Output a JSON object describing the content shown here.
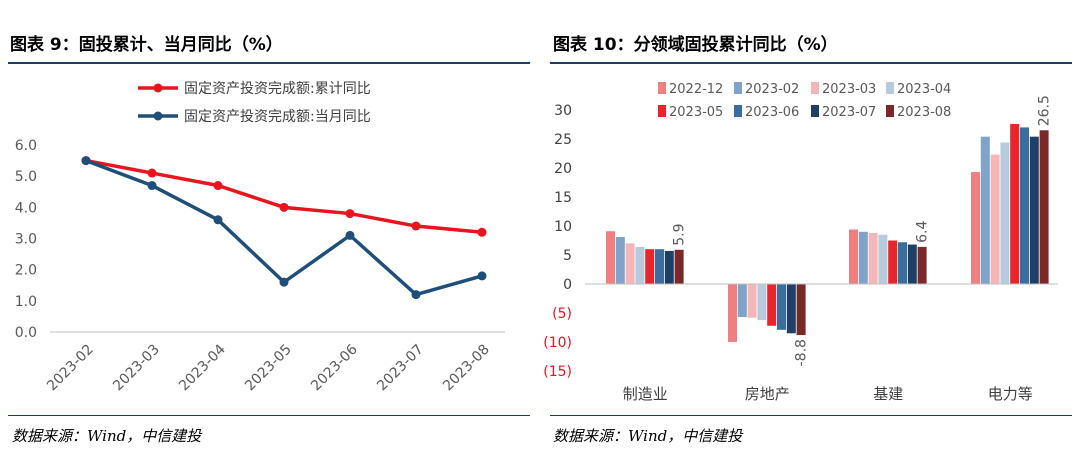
{
  "left_panel": {
    "title": "图表 9：固投累计、当月同比（%）",
    "source": "数据来源：Wind，中信建投"
  },
  "right_panel": {
    "title": "图表 10：分领域固投累计同比（%）",
    "source": "数据来源：Wind，中信建投"
  },
  "chart_data": [
    {
      "type": "line",
      "categories": [
        "2023-02",
        "2023-03",
        "2023-04",
        "2023-05",
        "2023-06",
        "2023-07",
        "2023-08"
      ],
      "series": [
        {
          "name": "固定资产投资完成额:累计同比",
          "color": "#e8141e",
          "values": [
            5.5,
            5.1,
            4.7,
            4.0,
            3.8,
            3.4,
            3.2
          ]
        },
        {
          "name": "固定资产投资完成额:当月同比",
          "color": "#1f4e79",
          "values": [
            5.5,
            4.7,
            3.6,
            1.6,
            3.1,
            1.2,
            1.8
          ]
        }
      ],
      "ylim": [
        0,
        6
      ],
      "yticks": [
        "0.0",
        "1.0",
        "2.0",
        "3.0",
        "4.0",
        "5.0",
        "6.0"
      ],
      "legend": "top",
      "grid": false
    },
    {
      "type": "bar",
      "categories": [
        "制造业",
        "房地产",
        "基建",
        "电力等"
      ],
      "series": [
        {
          "name": "2022-12",
          "color": "#f08080",
          "values": [
            9.1,
            -10.0,
            9.4,
            19.3
          ]
        },
        {
          "name": "2023-02",
          "color": "#7fa3c9",
          "values": [
            8.1,
            -5.7,
            9.0,
            25.4
          ]
        },
        {
          "name": "2023-03",
          "color": "#f4b6b6",
          "values": [
            7.0,
            -5.8,
            8.8,
            22.3
          ]
        },
        {
          "name": "2023-04",
          "color": "#b8cbdc",
          "values": [
            6.4,
            -6.2,
            8.5,
            24.4
          ]
        },
        {
          "name": "2023-05",
          "color": "#e8242c",
          "values": [
            6.0,
            -7.2,
            7.5,
            27.6
          ]
        },
        {
          "name": "2023-06",
          "color": "#3a6e9f",
          "values": [
            6.0,
            -7.9,
            7.2,
            27.0
          ]
        },
        {
          "name": "2023-07",
          "color": "#1f3f66",
          "values": [
            5.7,
            -8.5,
            6.8,
            25.4
          ]
        },
        {
          "name": "2023-08",
          "color": "#7a2828",
          "values": [
            5.9,
            -8.8,
            6.4,
            26.5
          ]
        }
      ],
      "data_labels": [
        "5.9",
        "-8.8",
        "6.4",
        "26.5"
      ],
      "ylim": [
        -15,
        30
      ],
      "yticks": [
        "(15)",
        "(10)",
        "(5)",
        "0",
        "5",
        "10",
        "15",
        "20",
        "25",
        "30"
      ],
      "legend": "top",
      "grid": false
    }
  ]
}
